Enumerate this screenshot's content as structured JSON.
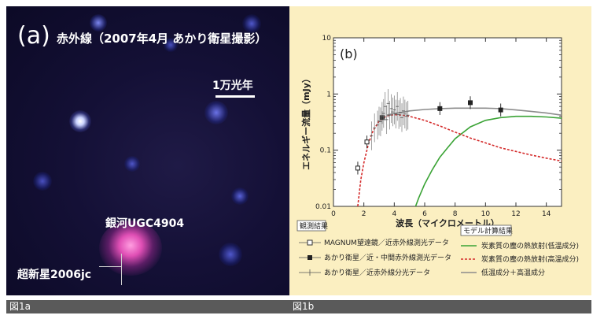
{
  "panel_a": {
    "letter": "(a)",
    "title": "赤外線（2007年4月 あかり衛星撮影）",
    "scale_label": "1万光年",
    "galaxy_label": "銀河UGC4904",
    "supernova_label": "超新星2006jc",
    "figure_label": "図1a"
  },
  "panel_b": {
    "figure_label": "図1b"
  },
  "chart_data": {
    "type": "line",
    "title": "(b)",
    "xlabel": "波長（マイクロメートル）",
    "ylabel": "エネルギー流量（mJy）",
    "xlim": [
      0,
      15
    ],
    "ylim": [
      0.01,
      10
    ],
    "yscale": "log",
    "xticks": [
      0,
      2,
      4,
      6,
      8,
      10,
      12,
      14
    ],
    "yticks": [
      {
        "v": 0.01,
        "label": "0.01"
      },
      {
        "v": 0.1,
        "label": "0.1"
      },
      {
        "v": 1,
        "label": "1"
      },
      {
        "v": 10,
        "label": "10"
      }
    ],
    "grid": false,
    "observed_header": "観測結果",
    "model_header": "モデル計算結果",
    "series": [
      {
        "name": "炭素質の塵の熱放射(低温成分)",
        "color": "#3aa335",
        "style": "solid",
        "x": [
          5.4,
          5.6,
          6.0,
          6.5,
          7.0,
          7.5,
          8.0,
          9.0,
          10.0,
          11.0,
          12.0,
          13.0,
          14.0,
          15.0
        ],
        "y": [
          0.01,
          0.014,
          0.025,
          0.045,
          0.075,
          0.11,
          0.16,
          0.26,
          0.34,
          0.38,
          0.4,
          0.4,
          0.39,
          0.37
        ]
      },
      {
        "name": "炭素質の塵の熱放射(高温成分)",
        "color": "#d42a2a",
        "style": "dashed",
        "x": [
          1.6,
          1.8,
          2.0,
          2.3,
          2.6,
          3.0,
          3.5,
          4.0,
          4.5,
          5.0,
          6.0,
          7.0,
          8.0,
          9.0,
          10.0,
          11.0,
          12.0,
          13.0,
          14.0,
          15.0
        ],
        "y": [
          0.01,
          0.03,
          0.06,
          0.13,
          0.22,
          0.33,
          0.41,
          0.43,
          0.42,
          0.4,
          0.34,
          0.27,
          0.21,
          0.165,
          0.135,
          0.11,
          0.095,
          0.082,
          0.072,
          0.064
        ]
      },
      {
        "name": "低温成分＋高温成分",
        "color": "#8c8c8c",
        "style": "solid",
        "x": [
          3.5,
          4.0,
          4.5,
          5.0,
          6.0,
          7.0,
          8.0,
          9.0,
          10.0,
          11.0,
          12.0,
          13.0,
          14.0,
          15.0
        ],
        "y": [
          0.42,
          0.45,
          0.47,
          0.5,
          0.53,
          0.55,
          0.56,
          0.56,
          0.56,
          0.55,
          0.52,
          0.49,
          0.46,
          0.42
        ]
      },
      {
        "name": "MAGNUM望遠鏡／近赤外線測光データ",
        "marker": "open-square",
        "x": [
          1.6,
          2.2
        ],
        "y": [
          0.048,
          0.14
        ]
      },
      {
        "name": "あかり衛星／近・中間赤外線測光データ",
        "marker": "filled-square",
        "x": [
          3.2,
          7.0,
          9.0,
          11.0
        ],
        "y": [
          0.38,
          0.55,
          0.7,
          0.52
        ]
      },
      {
        "name": "あかり衛星／近赤外線分光データ",
        "marker": "cross",
        "x": [
          2.5,
          2.7,
          2.9,
          3.0,
          3.1,
          3.2,
          3.3,
          3.4,
          3.5,
          3.6,
          3.7,
          3.8,
          3.9,
          4.0,
          4.1,
          4.2,
          4.3,
          4.4,
          4.5,
          4.6,
          4.7,
          4.8,
          4.9
        ],
        "y": [
          0.18,
          0.25,
          0.28,
          0.33,
          0.32,
          0.4,
          0.45,
          0.6,
          0.35,
          0.68,
          0.42,
          0.55,
          0.48,
          0.52,
          0.44,
          0.6,
          0.43,
          0.47,
          0.38,
          0.5,
          0.44,
          0.4,
          0.42
        ]
      }
    ]
  }
}
